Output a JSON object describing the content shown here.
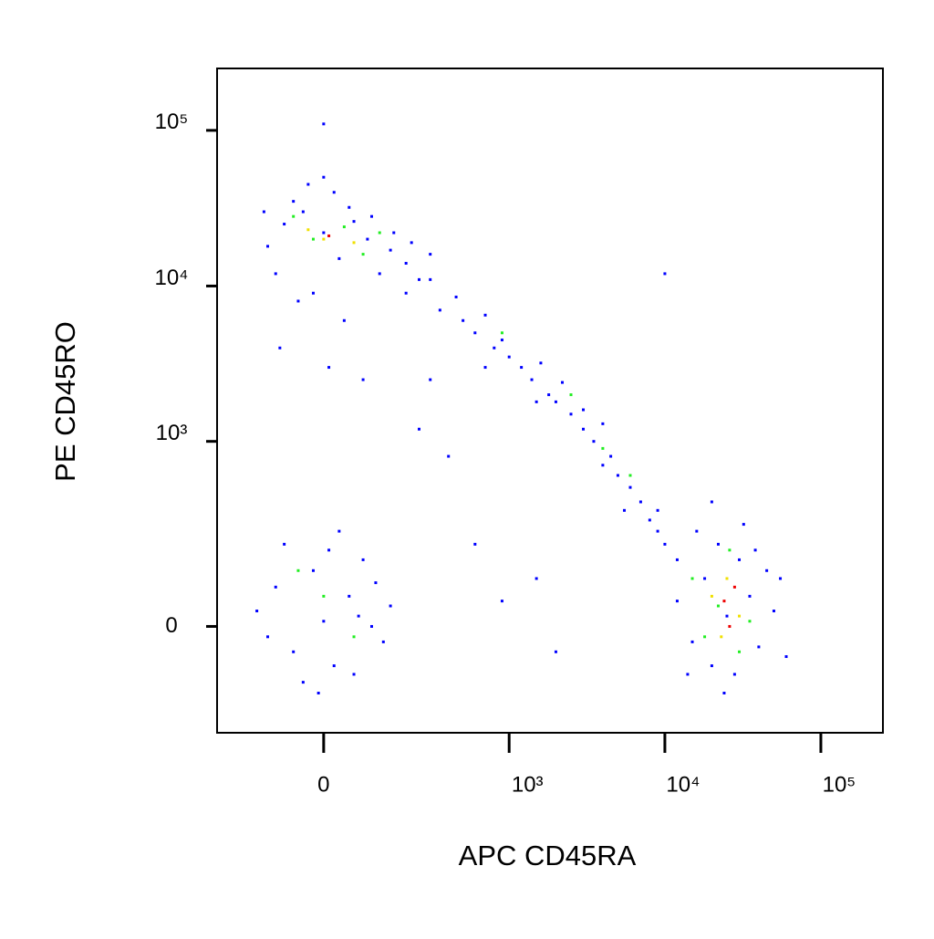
{
  "chart_data": {
    "type": "scatter",
    "x_label": "APC CD45RA",
    "y_label": "PE CD45RO",
    "scale": "biexponential",
    "xlim": [
      -300,
      250000
    ],
    "ylim": [
      -300,
      250000
    ],
    "xticks": [
      0,
      {
        "value": 1000,
        "label": "10³"
      },
      {
        "value": 10000,
        "label": "10⁴"
      },
      {
        "value": 100000,
        "label": "10⁵"
      }
    ],
    "yticks": [
      0,
      {
        "value": 1000,
        "label": "10³"
      },
      {
        "value": 10000,
        "label": "10⁴"
      },
      {
        "value": 100000,
        "label": "10⁵"
      }
    ],
    "series": [
      {
        "color": "#0000ff",
        "x": [
          -120,
          -80,
          -40,
          0,
          30,
          60,
          90,
          120,
          -100,
          -60,
          20,
          50,
          100,
          150,
          200,
          250,
          -130,
          -20,
          40,
          -90,
          10,
          80,
          -50,
          160,
          220,
          300,
          0,
          -30,
          -150,
          -100,
          -60,
          -20,
          0,
          20,
          50,
          80,
          100,
          130,
          -80,
          -40,
          10,
          60,
          110,
          150,
          -120,
          30,
          -10,
          70,
          200,
          300,
          350,
          450,
          500,
          600,
          700,
          800,
          900,
          1000,
          1200,
          1400,
          1600,
          1800,
          2000,
          2500,
          3000,
          3500,
          4000,
          4500,
          5000,
          6000,
          7000,
          8000,
          9000,
          10000,
          12000,
          4000,
          3000,
          2200,
          1500,
          700,
          5500,
          9000,
          300,
          600,
          900,
          1500,
          400,
          250,
          2000,
          12000,
          15000,
          18000,
          20000,
          22000,
          25000,
          28000,
          30000,
          35000,
          40000,
          45000,
          50000,
          60000,
          16000,
          24000,
          32000,
          14000,
          38000,
          55000,
          20000,
          0,
          10000
        ],
        "y": [
          18000,
          25000,
          30000,
          22000,
          15000,
          26000,
          20000,
          12000,
          12000,
          35000,
          40000,
          32000,
          28000,
          17000,
          14000,
          11000,
          30000,
          9000,
          6000,
          4000,
          3000,
          2500,
          8000,
          22000,
          19000,
          16000,
          50000,
          45000,
          30,
          80,
          -50,
          120,
          10,
          -80,
          60,
          150,
          0,
          -30,
          200,
          -120,
          180,
          -100,
          90,
          40,
          -20,
          250,
          -150,
          20,
          9000,
          11000,
          7000,
          8500,
          6000,
          5000,
          6500,
          4000,
          4500,
          3500,
          3000,
          2500,
          3200,
          2000,
          1800,
          1500,
          1200,
          1000,
          1300,
          800,
          600,
          500,
          400,
          300,
          250,
          200,
          150,
          700,
          1600,
          2400,
          1800,
          3000,
          350,
          350,
          2500,
          200,
          50,
          100,
          800,
          1200,
          -50,
          50,
          -30,
          100,
          -80,
          200,
          20,
          -100,
          150,
          60,
          -40,
          120,
          30,
          -60,
          250,
          -150,
          280,
          -100,
          180,
          100,
          400,
          110000,
          12000
        ]
      },
      {
        "color": "#22ee22",
        "x": [
          -20,
          40,
          80,
          120,
          -60,
          900,
          2500,
          4000,
          6000,
          0,
          -50,
          60,
          15000,
          22000,
          30000,
          26000,
          35000,
          18000
        ],
        "y": [
          20000,
          24000,
          16000,
          22000,
          28000,
          5000,
          2000,
          900,
          600,
          60,
          120,
          -20,
          100,
          40,
          -50,
          180,
          10,
          -20
        ]
      },
      {
        "color": "#f0e000",
        "x": [
          0,
          60,
          -30,
          20000,
          25000,
          30000,
          23000
        ],
        "y": [
          20000,
          19000,
          23000,
          60,
          100,
          20,
          -20
        ]
      },
      {
        "color": "#ee0000",
        "x": [
          10,
          24000,
          28000,
          26000
        ],
        "y": [
          21000,
          50,
          80,
          0
        ]
      }
    ]
  }
}
